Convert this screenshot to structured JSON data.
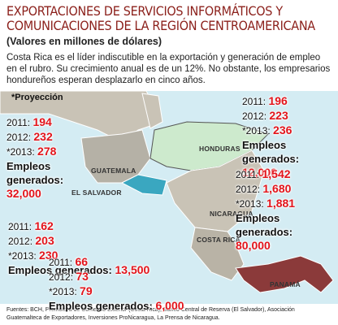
{
  "header": {
    "title_lines": [
      "EXPORTACIONES DE SERVICIOS INFORMÁTICOS Y",
      "COMUNICACIONES DE LA REGIÓN CENTROAMERICANA"
    ],
    "subtitle": "(Valores en millones de dólares)",
    "intro": "Costa Rica es el líder indiscutible en la exportación y generación de empleo en el rubro. Su crecimiento anual es de un 12%. No obstante, los empresarios hondureños esperan desplazarlo en cinco años.",
    "note": "*Proyección"
  },
  "map_labels": [
    "GUATEMALA",
    "HONDURAS",
    "EL SALVADOR",
    "NICARAGUA",
    "COSTA RICA",
    "PANAMÁ"
  ],
  "blocks": [
    {
      "rows": [
        {
          "label": "2011:",
          "value": 194
        },
        {
          "label": "2012:",
          "value": 232
        },
        {
          "label": "*2013:",
          "value": 278
        }
      ],
      "jobs_label": "Empleos generados:",
      "jobs": "32,000"
    },
    {
      "rows": [
        {
          "label": "2011:",
          "value": 196
        },
        {
          "label": "2012:",
          "value": 223
        },
        {
          "label": "*2013:",
          "value": 236
        }
      ],
      "jobs_label": "Empleos generados:",
      "jobs": "12,000"
    },
    {
      "rows": [
        {
          "label": "2011:",
          "value": "1,542"
        },
        {
          "label": "2012:",
          "value": "1,680"
        },
        {
          "label": "*2013:",
          "value": "1,881"
        }
      ],
      "jobs_label": "Empleos generados:",
      "jobs": "80,000"
    },
    {
      "rows": [
        {
          "label": "2011:",
          "value": 162
        },
        {
          "label": "2012:",
          "value": 203
        },
        {
          "label": "*2013:",
          "value": 230
        }
      ],
      "jobs_label": "Empleos generados:",
      "jobs": "13,500"
    },
    {
      "rows": [
        {
          "label": "2011:",
          "value": 66
        },
        {
          "label": "2012:",
          "value": 73
        },
        {
          "label": "*2013:",
          "value": 79
        }
      ],
      "jobs_label": "Empleos generados:",
      "jobs": "6,000"
    }
  ],
  "sources": "Fuentes: BCH, Promotora de Comercio Exterior (Costa Rica), Banco Central de Reserva (El Salvador), Asociación Guatemalteca de Exportadores, Inversiones ProNicaragua, La Prensa de Nicaragua."
}
